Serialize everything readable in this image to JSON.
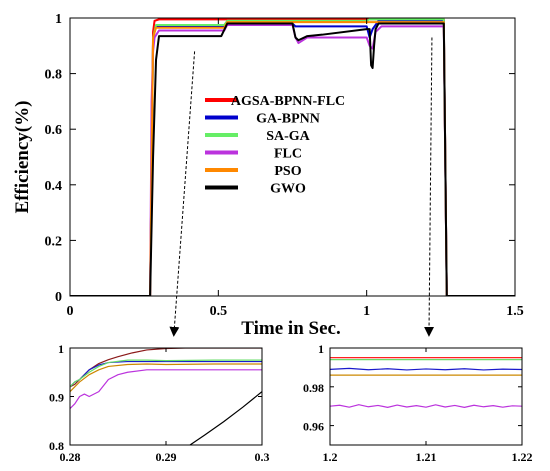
{
  "chart_data": [
    {
      "id": "main",
      "type": "line",
      "title": "",
      "xlabel": "Time in Sec.",
      "ylabel": "Efficiency(%)",
      "xlim": [
        0,
        1.5
      ],
      "ylim": [
        0,
        1
      ],
      "xticks": [
        0,
        0.5,
        1,
        1.5
      ],
      "yticks": [
        0,
        0.2,
        0.4,
        0.6,
        0.8,
        1
      ],
      "xtick_labels": [
        "0",
        "0.5",
        "1",
        "1.5"
      ],
      "ytick_labels": [
        "0",
        "0.2",
        "0.4",
        "0.6",
        "0.8",
        "1"
      ],
      "grid": false,
      "legend_position": "center",
      "series": [
        {
          "name": "AGSA-BPNN-FLC",
          "color": "#ff0000",
          "x": [
            0,
            0.27,
            0.28,
            0.285,
            0.3,
            0.52,
            0.53,
            1.0,
            1.01,
            1.25,
            1.26,
            1.27,
            1.5
          ],
          "y": [
            0,
            0,
            0.95,
            0.99,
            0.995,
            0.995,
            0.995,
            0.995,
            0.995,
            0.995,
            0.995,
            0,
            0
          ]
        },
        {
          "name": "GA-BPNN",
          "color": "#0000cc",
          "x": [
            0,
            0.27,
            0.28,
            0.29,
            0.5,
            0.52,
            0.53,
            0.75,
            0.76,
            1.0,
            1.01,
            1.02,
            1.04,
            1.25,
            1.26,
            1.27,
            1.5
          ],
          "y": [
            0,
            0,
            0.93,
            0.97,
            0.97,
            0.97,
            0.98,
            0.98,
            0.97,
            0.97,
            0.93,
            0.96,
            0.99,
            0.99,
            0.99,
            0,
            0
          ]
        },
        {
          "name": "SA-GA",
          "color": "#66ee66",
          "x": [
            0,
            0.27,
            0.28,
            0.29,
            0.52,
            0.53,
            1.0,
            1.01,
            1.25,
            1.26,
            1.27,
            1.5
          ],
          "y": [
            0,
            0,
            0.93,
            0.975,
            0.975,
            0.99,
            0.99,
            0.995,
            0.995,
            0.995,
            0,
            0
          ]
        },
        {
          "name": "FLC",
          "color": "#bb33dd",
          "x": [
            0,
            0.27,
            0.275,
            0.28,
            0.285,
            0.3,
            0.52,
            0.53,
            0.75,
            0.76,
            0.77,
            0.8,
            1.0,
            1.01,
            1.02,
            1.03,
            1.05,
            1.25,
            1.26,
            1.27,
            1.5
          ],
          "y": [
            0,
            0,
            0.7,
            0.88,
            0.93,
            0.955,
            0.955,
            0.975,
            0.975,
            0.93,
            0.91,
            0.93,
            0.93,
            0.9,
            0.89,
            0.95,
            0.97,
            0.97,
            0.97,
            0,
            0
          ]
        },
        {
          "name": "PSO",
          "color": "#ff8800",
          "x": [
            0,
            0.27,
            0.28,
            0.29,
            0.52,
            0.53,
            1.0,
            1.01,
            1.25,
            1.26,
            1.27,
            1.5
          ],
          "y": [
            0,
            0,
            0.93,
            0.965,
            0.965,
            0.985,
            0.985,
            0.985,
            0.985,
            0.985,
            0,
            0
          ]
        },
        {
          "name": "GWO",
          "color": "#000000",
          "x": [
            0,
            0.27,
            0.28,
            0.29,
            0.3,
            0.51,
            0.53,
            0.75,
            0.76,
            0.77,
            0.8,
            0.85,
            1.0,
            1.01,
            1.015,
            1.02,
            1.025,
            1.03,
            1.04,
            1.25,
            1.26,
            1.27,
            1.5
          ],
          "y": [
            0,
            0,
            0.5,
            0.85,
            0.935,
            0.935,
            0.98,
            0.98,
            0.93,
            0.92,
            0.935,
            0.94,
            0.96,
            0.96,
            0.83,
            0.82,
            0.9,
            0.96,
            0.98,
            0.98,
            0.98,
            0,
            0
          ]
        }
      ],
      "annotations": [
        {
          "type": "arrow",
          "from": [
            0.42,
            0.88
          ],
          "to": [
            0.35,
            -0.14
          ]
        },
        {
          "type": "arrow",
          "from": [
            1.22,
            0.93
          ],
          "to": [
            1.21,
            -0.14
          ]
        }
      ]
    },
    {
      "id": "inset-left",
      "type": "line",
      "xlim": [
        0.28,
        0.3
      ],
      "ylim": [
        0.8,
        1
      ],
      "xticks": [
        0.28,
        0.29,
        0.3
      ],
      "yticks": [
        0.8,
        0.9,
        1
      ],
      "xtick_labels": [
        "0.28",
        "0.29",
        "0.3"
      ],
      "ytick_labels": [
        "0.8",
        "0.9",
        "1"
      ],
      "series": [
        {
          "color": "#8b1a1a",
          "x": [
            0.28,
            0.2805,
            0.281,
            0.282,
            0.283,
            0.284,
            0.285,
            0.2865,
            0.288,
            0.29,
            0.292,
            0.295,
            0.3
          ],
          "y": [
            0.92,
            0.925,
            0.935,
            0.955,
            0.968,
            0.976,
            0.982,
            0.99,
            0.996,
            0.999,
            1.0,
            1.0,
            1.0
          ]
        },
        {
          "color": "#1a1acc",
          "x": [
            0.28,
            0.2805,
            0.281,
            0.282,
            0.283,
            0.284,
            0.286,
            0.288,
            0.29,
            0.295,
            0.3
          ],
          "y": [
            0.92,
            0.93,
            0.935,
            0.955,
            0.965,
            0.97,
            0.972,
            0.972,
            0.972,
            0.972,
            0.972
          ]
        },
        {
          "color": "#66dd66",
          "x": [
            0.28,
            0.2805,
            0.281,
            0.282,
            0.283,
            0.284,
            0.286,
            0.288,
            0.29,
            0.295,
            0.3
          ],
          "y": [
            0.92,
            0.93,
            0.935,
            0.95,
            0.962,
            0.97,
            0.975,
            0.975,
            0.974,
            0.975,
            0.975
          ]
        },
        {
          "color": "#bb33dd",
          "x": [
            0.28,
            0.2805,
            0.281,
            0.2815,
            0.282,
            0.283,
            0.284,
            0.285,
            0.286,
            0.288,
            0.29,
            0.295,
            0.3
          ],
          "y": [
            0.875,
            0.885,
            0.9,
            0.905,
            0.9,
            0.91,
            0.935,
            0.945,
            0.95,
            0.955,
            0.955,
            0.955,
            0.955
          ]
        },
        {
          "color": "#cc8800",
          "x": [
            0.28,
            0.2805,
            0.281,
            0.282,
            0.283,
            0.284,
            0.286,
            0.288,
            0.29,
            0.295,
            0.3
          ],
          "y": [
            0.91,
            0.92,
            0.93,
            0.945,
            0.955,
            0.962,
            0.966,
            0.967,
            0.966,
            0.967,
            0.967
          ]
        },
        {
          "color": "#000000",
          "x": [
            0.2925,
            0.294,
            0.296,
            0.298,
            0.3
          ],
          "y": [
            0.8,
            0.82,
            0.848,
            0.878,
            0.91
          ]
        }
      ]
    },
    {
      "id": "inset-right",
      "type": "line",
      "xlim": [
        1.2,
        1.22
      ],
      "ylim": [
        0.95,
        1
      ],
      "xticks": [
        1.2,
        1.21,
        1.22
      ],
      "yticks": [
        0.96,
        0.98,
        1
      ],
      "xtick_labels": [
        "1.2",
        "1.21",
        "1.22"
      ],
      "ytick_labels": [
        "0.96",
        "0.98",
        "1"
      ],
      "series": [
        {
          "color": "#ff0000",
          "x": [
            1.2,
            1.22
          ],
          "y": [
            0.995,
            0.995
          ]
        },
        {
          "color": "#66dd66",
          "x": [
            1.2,
            1.22
          ],
          "y": [
            0.994,
            0.994
          ]
        },
        {
          "color": "#cc8800",
          "x": [
            1.2,
            1.22
          ],
          "y": [
            0.986,
            0.986
          ]
        },
        {
          "color": "#1a1acc",
          "x": [
            1.2,
            1.202,
            1.204,
            1.206,
            1.208,
            1.21,
            1.212,
            1.214,
            1.216,
            1.218,
            1.22
          ],
          "y": [
            0.989,
            0.9895,
            0.9888,
            0.9893,
            0.9887,
            0.9892,
            0.9888,
            0.9893,
            0.9887,
            0.9891,
            0.9889
          ]
        },
        {
          "color": "#bb33dd",
          "x": [
            1.2,
            1.201,
            1.202,
            1.203,
            1.204,
            1.205,
            1.206,
            1.207,
            1.208,
            1.209,
            1.21,
            1.211,
            1.212,
            1.213,
            1.214,
            1.215,
            1.216,
            1.217,
            1.218,
            1.219,
            1.22
          ],
          "y": [
            0.97,
            0.9705,
            0.9695,
            0.9708,
            0.9697,
            0.9704,
            0.9694,
            0.9706,
            0.9696,
            0.9703,
            0.9695,
            0.9707,
            0.9696,
            0.9704,
            0.9694,
            0.9705,
            0.9697,
            0.9703,
            0.9695,
            0.9702,
            0.97
          ]
        }
      ]
    }
  ]
}
